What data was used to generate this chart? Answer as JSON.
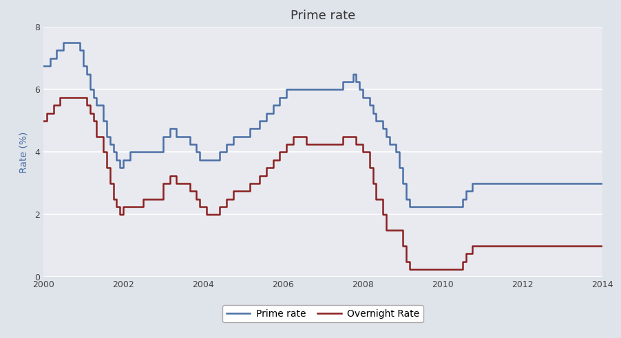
{
  "title": "Prime rate",
  "ylabel": "Rate (%)",
  "xlim": [
    2000,
    2014
  ],
  "ylim": [
    0,
    8
  ],
  "yticks": [
    0,
    2,
    4,
    6,
    8
  ],
  "xticks": [
    2000,
    2002,
    2004,
    2006,
    2008,
    2010,
    2012,
    2014
  ],
  "fig_background": "#dfe3ea",
  "plot_background": "#e8eaf0",
  "grid_color": "#ffffff",
  "prime_color": "#4a6fa5",
  "overnight_color": "#8b2020",
  "ylabel_color": "#4a6fa5",
  "prime_label": "Prime rate",
  "overnight_label": "Overnight Rate",
  "title_fontsize": 13,
  "tick_fontsize": 9,
  "ylabel_fontsize": 10,
  "prime_data": [
    [
      2000.0,
      6.75
    ],
    [
      2000.17,
      7.0
    ],
    [
      2000.33,
      7.25
    ],
    [
      2000.5,
      7.5
    ],
    [
      2000.75,
      7.5
    ],
    [
      2000.92,
      7.25
    ],
    [
      2001.0,
      6.75
    ],
    [
      2001.08,
      6.5
    ],
    [
      2001.17,
      6.0
    ],
    [
      2001.25,
      5.75
    ],
    [
      2001.33,
      5.5
    ],
    [
      2001.5,
      5.0
    ],
    [
      2001.58,
      4.5
    ],
    [
      2001.67,
      4.25
    ],
    [
      2001.75,
      4.0
    ],
    [
      2001.83,
      3.75
    ],
    [
      2001.92,
      3.5
    ],
    [
      2002.0,
      3.75
    ],
    [
      2002.17,
      4.0
    ],
    [
      2002.5,
      4.0
    ],
    [
      2003.0,
      4.5
    ],
    [
      2003.17,
      4.75
    ],
    [
      2003.33,
      4.5
    ],
    [
      2003.58,
      4.5
    ],
    [
      2003.67,
      4.25
    ],
    [
      2003.83,
      4.0
    ],
    [
      2003.92,
      3.75
    ],
    [
      2004.08,
      3.75
    ],
    [
      2004.42,
      4.0
    ],
    [
      2004.58,
      4.25
    ],
    [
      2004.75,
      4.5
    ],
    [
      2005.0,
      4.5
    ],
    [
      2005.17,
      4.75
    ],
    [
      2005.42,
      5.0
    ],
    [
      2005.58,
      5.25
    ],
    [
      2005.75,
      5.5
    ],
    [
      2005.92,
      5.75
    ],
    [
      2006.08,
      6.0
    ],
    [
      2006.25,
      6.0
    ],
    [
      2006.58,
      6.0
    ],
    [
      2007.0,
      6.0
    ],
    [
      2007.33,
      6.0
    ],
    [
      2007.5,
      6.25
    ],
    [
      2007.75,
      6.5
    ],
    [
      2007.83,
      6.25
    ],
    [
      2007.92,
      6.0
    ],
    [
      2008.0,
      5.75
    ],
    [
      2008.17,
      5.5
    ],
    [
      2008.25,
      5.25
    ],
    [
      2008.33,
      5.0
    ],
    [
      2008.5,
      4.75
    ],
    [
      2008.58,
      4.5
    ],
    [
      2008.67,
      4.25
    ],
    [
      2008.83,
      4.0
    ],
    [
      2008.92,
      3.5
    ],
    [
      2009.0,
      3.0
    ],
    [
      2009.08,
      2.5
    ],
    [
      2009.17,
      2.25
    ],
    [
      2009.33,
      2.25
    ],
    [
      2009.5,
      2.25
    ],
    [
      2010.0,
      2.25
    ],
    [
      2010.08,
      2.25
    ],
    [
      2010.5,
      2.5
    ],
    [
      2010.58,
      2.75
    ],
    [
      2010.75,
      3.0
    ],
    [
      2011.0,
      3.0
    ],
    [
      2014.0,
      3.0
    ]
  ],
  "overnight_data": [
    [
      2000.0,
      5.0
    ],
    [
      2000.08,
      5.25
    ],
    [
      2000.25,
      5.5
    ],
    [
      2000.42,
      5.75
    ],
    [
      2000.58,
      5.75
    ],
    [
      2000.75,
      5.75
    ],
    [
      2000.92,
      5.75
    ],
    [
      2001.0,
      5.75
    ],
    [
      2001.08,
      5.5
    ],
    [
      2001.17,
      5.25
    ],
    [
      2001.25,
      5.0
    ],
    [
      2001.33,
      4.5
    ],
    [
      2001.5,
      4.0
    ],
    [
      2001.58,
      3.5
    ],
    [
      2001.67,
      3.0
    ],
    [
      2001.75,
      2.5
    ],
    [
      2001.83,
      2.25
    ],
    [
      2001.92,
      2.0
    ],
    [
      2002.0,
      2.25
    ],
    [
      2002.5,
      2.5
    ],
    [
      2003.0,
      3.0
    ],
    [
      2003.17,
      3.25
    ],
    [
      2003.33,
      3.0
    ],
    [
      2003.58,
      3.0
    ],
    [
      2003.67,
      2.75
    ],
    [
      2003.83,
      2.5
    ],
    [
      2003.92,
      2.25
    ],
    [
      2004.08,
      2.0
    ],
    [
      2004.42,
      2.25
    ],
    [
      2004.58,
      2.5
    ],
    [
      2004.75,
      2.75
    ],
    [
      2005.0,
      2.75
    ],
    [
      2005.17,
      3.0
    ],
    [
      2005.42,
      3.25
    ],
    [
      2005.58,
      3.5
    ],
    [
      2005.75,
      3.75
    ],
    [
      2005.92,
      4.0
    ],
    [
      2006.08,
      4.25
    ],
    [
      2006.25,
      4.5
    ],
    [
      2006.58,
      4.25
    ],
    [
      2007.0,
      4.25
    ],
    [
      2007.33,
      4.25
    ],
    [
      2007.5,
      4.5
    ],
    [
      2007.75,
      4.5
    ],
    [
      2007.83,
      4.25
    ],
    [
      2007.92,
      4.25
    ],
    [
      2008.0,
      4.0
    ],
    [
      2008.17,
      3.5
    ],
    [
      2008.25,
      3.0
    ],
    [
      2008.33,
      2.5
    ],
    [
      2008.5,
      2.0
    ],
    [
      2008.58,
      1.5
    ],
    [
      2008.75,
      1.5
    ],
    [
      2008.92,
      1.5
    ],
    [
      2009.0,
      1.0
    ],
    [
      2009.08,
      0.5
    ],
    [
      2009.17,
      0.25
    ],
    [
      2009.33,
      0.25
    ],
    [
      2009.5,
      0.25
    ],
    [
      2010.0,
      0.25
    ],
    [
      2010.08,
      0.25
    ],
    [
      2010.5,
      0.5
    ],
    [
      2010.58,
      0.75
    ],
    [
      2010.75,
      1.0
    ],
    [
      2011.0,
      1.0
    ],
    [
      2014.0,
      1.0
    ]
  ]
}
